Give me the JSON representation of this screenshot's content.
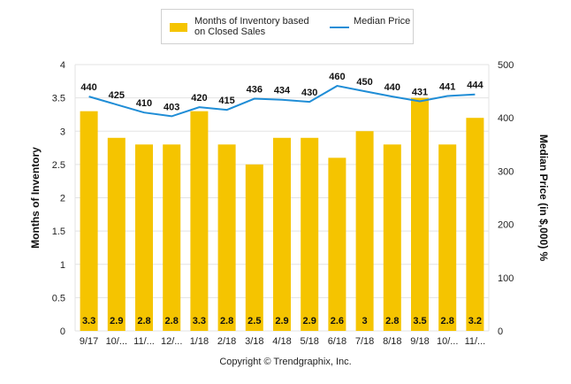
{
  "chart_data": {
    "type": "bar",
    "categories": [
      "9/17",
      "10/...",
      "11/...",
      "12/...",
      "1/18",
      "2/18",
      "3/18",
      "4/18",
      "5/18",
      "6/18",
      "7/18",
      "8/18",
      "9/18",
      "10/...",
      "11/..."
    ],
    "series": [
      {
        "name": "Months of Inventory based on Closed Sales",
        "type": "bar",
        "axis": "left",
        "color": "#f5c400",
        "values": [
          3.3,
          2.9,
          2.8,
          2.8,
          3.3,
          2.8,
          2.5,
          2.9,
          2.9,
          2.6,
          3,
          2.8,
          3.5,
          2.8,
          3.2
        ],
        "labels": [
          "3.3",
          "2.9",
          "2.8",
          "2.8",
          "3.3",
          "2.8",
          "2.5",
          "2.9",
          "2.9",
          "2.6",
          "3",
          "2.8",
          "3.5",
          "2.8",
          "3.2"
        ]
      },
      {
        "name": "Median Price",
        "type": "line",
        "axis": "right",
        "color": "#1f8dd6",
        "values": [
          440,
          425,
          410,
          403,
          420,
          415,
          436,
          434,
          430,
          460,
          450,
          440,
          431,
          441,
          444
        ],
        "labels": [
          "440",
          "425",
          "410",
          "403",
          "420",
          "415",
          "436",
          "434",
          "430",
          "460",
          "450",
          "440",
          "431",
          "441",
          "444"
        ]
      }
    ],
    "ylabel": "Months of Inventory",
    "y2label": "Median Price (in $,000) %",
    "ylim": [
      0,
      4
    ],
    "y2lim": [
      0,
      500
    ],
    "yticks": [
      "0",
      "0.5",
      "1",
      "1.5",
      "2",
      "2.5",
      "3",
      "3.5",
      "4"
    ],
    "y2ticks": [
      "0",
      "100",
      "200",
      "300",
      "400",
      "500"
    ],
    "grid": true,
    "legend": "top-center"
  },
  "legend": {
    "bar_label_line1": "Months of Inventory based",
    "bar_label_line2": "on Closed Sales",
    "line_label": "Median Price"
  },
  "footer": {
    "copyright": "Copyright © Trendgraphix, Inc."
  },
  "colors": {
    "bar": "#f5c400",
    "line": "#1f8dd6",
    "grid": "#e3e3e3",
    "axis_text": "#222222"
  }
}
